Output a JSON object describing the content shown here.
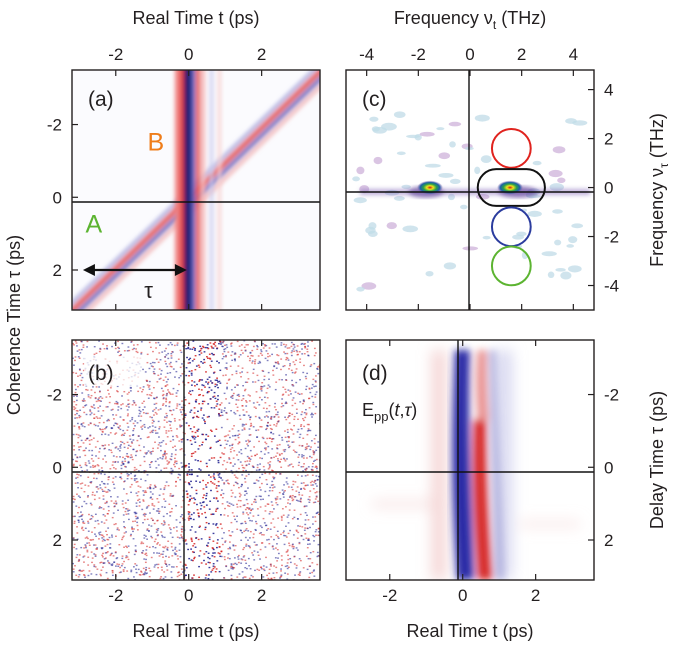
{
  "chart_data": [
    {
      "id": "a",
      "type": "heatmap",
      "panel_label": "(a)",
      "xlabel_top": "Real Time t (ps)",
      "ylabel": "Coherence Time τ (ps)",
      "xlim": [
        -3.2,
        3.6
      ],
      "ylim": [
        -3.5,
        3.1
      ],
      "y_inverted": true,
      "xticks": [
        -2,
        0,
        2
      ],
      "xtick_labels": [
        "-2",
        "0",
        "2"
      ],
      "yticks": [
        -2,
        0,
        2
      ],
      "ytick_labels": [
        "-2",
        "0",
        "2"
      ],
      "colors": {
        "positive": "#d42020",
        "negative": "#1a1a8c",
        "zero": "#ffffff"
      },
      "features": [
        {
          "kind": "vertical-stripe",
          "t": 0.0,
          "sign": "negative",
          "strength": 1.0
        },
        {
          "kind": "vertical-stripe",
          "t": -0.15,
          "sign": "positive",
          "strength": 0.7
        },
        {
          "kind": "vertical-stripe",
          "t": 0.25,
          "sign": "positive",
          "strength": 0.6
        },
        {
          "kind": "diagonal",
          "slope": 1,
          "sign": "negative",
          "strength": 0.55
        },
        {
          "kind": "diagonal",
          "slope": 1,
          "sign": "positive",
          "strength": 0.5
        }
      ],
      "annotations": [
        {
          "text": "A",
          "t": -2.6,
          "tau": 0.75,
          "color": "#5cb431"
        },
        {
          "text": "B",
          "t": -0.9,
          "tau": -1.5,
          "color": "#ef7d1a"
        },
        {
          "text": "τ",
          "t": -1.1,
          "tau": 2.55,
          "color": "#231f20"
        }
      ],
      "arrow": {
        "t_start": -2.9,
        "t_end": -0.05,
        "tau": 2.0
      }
    },
    {
      "id": "b",
      "type": "heatmap",
      "panel_label": "(b)",
      "xlabel": "Real Time t (ps)",
      "xlim": [
        -3.2,
        3.6
      ],
      "ylim": [
        -3.5,
        3.1
      ],
      "y_inverted": true,
      "xticks": [
        -2,
        0,
        2
      ],
      "xtick_labels": [
        "-2",
        "0",
        "2"
      ],
      "yticks": [
        -2,
        0,
        2
      ],
      "ytick_labels": [
        "-2",
        "0",
        "2"
      ],
      "colors": {
        "positive": "#d42020",
        "negative": "#1a1a8c"
      },
      "pattern": "noise"
    },
    {
      "id": "c",
      "type": "heatmap",
      "panel_label": "(c)",
      "xlabel_top": "Frequency νt (THz)",
      "ylabel_right": "Frequency ντ (THz)",
      "xlim": [
        -4.8,
        4.8
      ],
      "ylim": [
        -5.0,
        4.8
      ],
      "xticks": [
        -4,
        -2,
        0,
        2,
        4
      ],
      "xtick_labels": [
        "-4",
        "-2",
        "0",
        "2",
        "4"
      ],
      "yticks": [
        4,
        2,
        0,
        -2,
        -4
      ],
      "ytick_labels": [
        "4",
        "2",
        "0",
        "-2",
        "-4"
      ],
      "peaks": [
        {
          "nu_t": -1.55,
          "nu_tau": 0.0,
          "amplitude": 1.0
        },
        {
          "nu_t": 1.55,
          "nu_tau": 0.0,
          "amplitude": 1.0
        }
      ],
      "markers": [
        {
          "shape": "circle",
          "nu_t": 1.6,
          "nu_tau": 1.6,
          "r": 0.75,
          "color": "#e0231e"
        },
        {
          "shape": "pill",
          "nu_t": 1.6,
          "nu_tau": 0.0,
          "w": 2.6,
          "h": 1.5,
          "color": "#111111"
        },
        {
          "shape": "circle",
          "nu_t": 1.6,
          "nu_tau": -1.6,
          "r": 0.75,
          "color": "#2b3c9e"
        },
        {
          "shape": "circle",
          "nu_t": 1.6,
          "nu_tau": -3.2,
          "r": 0.75,
          "color": "#5cb431"
        }
      ]
    },
    {
      "id": "d",
      "type": "heatmap",
      "panel_label": "(d)",
      "xlabel": "Real Time t (ps)",
      "ylabel_right": "Delay Time τ (ps)",
      "xlim": [
        -3.2,
        3.6
      ],
      "ylim": [
        -3.5,
        3.1
      ],
      "y_inverted": true,
      "xticks": [
        -2,
        0,
        2
      ],
      "xtick_labels": [
        "-2",
        "0",
        "2"
      ],
      "yticks": [
        -2,
        0,
        2
      ],
      "ytick_labels": [
        "-2",
        "0",
        "2"
      ],
      "colors": {
        "positive": "#d42020",
        "negative": "#1a1a8c"
      },
      "inline_label": "Epp(t,τ)",
      "features": [
        {
          "kind": "vertical-lobe",
          "t": 0.1,
          "sign": "negative",
          "strength": 1.0
        },
        {
          "kind": "vertical-lobe",
          "t": 0.55,
          "sign": "positive",
          "strength": 1.0
        },
        {
          "kind": "vertical-lobe",
          "t": -0.35,
          "sign": "positive",
          "strength": 0.35
        },
        {
          "kind": "vertical-lobe",
          "t": 1.0,
          "sign": "negative",
          "strength": 0.3
        }
      ]
    }
  ],
  "text": {
    "top_x_left": "Real Time t (ps)",
    "top_x_right_pre": "Frequency ν",
    "top_x_right_sub": "t",
    "top_x_right_post": " (THz)",
    "left_y": "Coherence Time τ (ps)",
    "right_y_top_pre": "Frequency ν",
    "right_y_top_sub": "τ",
    "right_y_top_post": " (THz)",
    "right_y_bottom": "Delay Time τ (ps)",
    "bottom_x_left": "Real Time t (ps)",
    "bottom_x_right": "Real Time t (ps)",
    "d_label_E": "E",
    "d_label_sub": "pp",
    "d_label_open": "(",
    "d_label_t": "t",
    "d_label_comma": ",",
    "d_label_tau": "τ",
    "d_label_close": ")"
  }
}
